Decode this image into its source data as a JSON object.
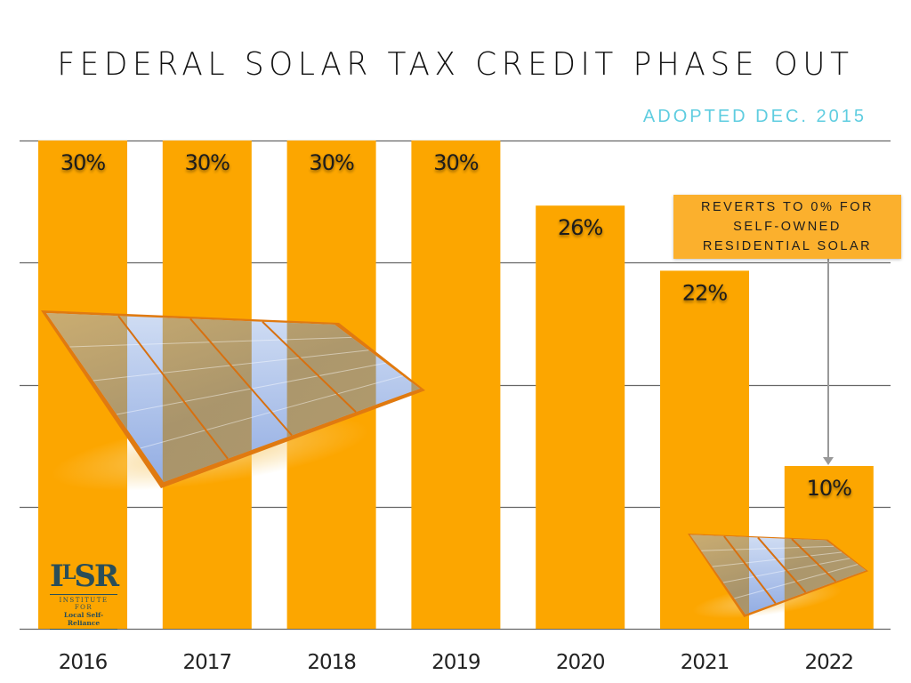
{
  "header": {
    "title": "FEDERAL SOLAR TAX CREDIT PHASE OUT",
    "subtitle": "ADOPTED DEC. 2015"
  },
  "callout": {
    "lines": [
      "REVERTS TO 0% FOR",
      "SELF-OWNED",
      "RESIDENTIAL SOLAR"
    ],
    "points_to": "2022"
  },
  "logo": {
    "mark": "ILSR",
    "line1": "INSTITUTE FOR",
    "line2": "Local Self-Reliance"
  },
  "colors": {
    "bar": "#fca600",
    "callout": "#fbb02d",
    "subtitle": "#5fcde0",
    "gridline": "#666666",
    "arrow": "#999999"
  },
  "chart_data": {
    "type": "bar",
    "title": "FEDERAL SOLAR TAX CREDIT PHASE OUT",
    "subtitle": "ADOPTED DEC. 2015",
    "xlabel": "",
    "ylabel": "",
    "categories": [
      "2016",
      "2017",
      "2018",
      "2019",
      "2020",
      "2021",
      "2022"
    ],
    "values": [
      30,
      30,
      30,
      30,
      26,
      22,
      10
    ],
    "data_labels": [
      "30%",
      "30%",
      "30%",
      "30%",
      "26%",
      "22%",
      "10%"
    ],
    "unit": "%",
    "ylim": [
      0,
      30
    ],
    "gridlines": [
      0,
      7.5,
      15,
      22.5,
      30
    ],
    "grid": true,
    "y_tick_labels_visible": false,
    "legend": "none",
    "annotations": [
      {
        "text": "REVERTS TO 0% FOR SELF-OWNED RESIDENTIAL SOLAR",
        "target": "2022",
        "style": "box-with-arrow"
      }
    ]
  }
}
